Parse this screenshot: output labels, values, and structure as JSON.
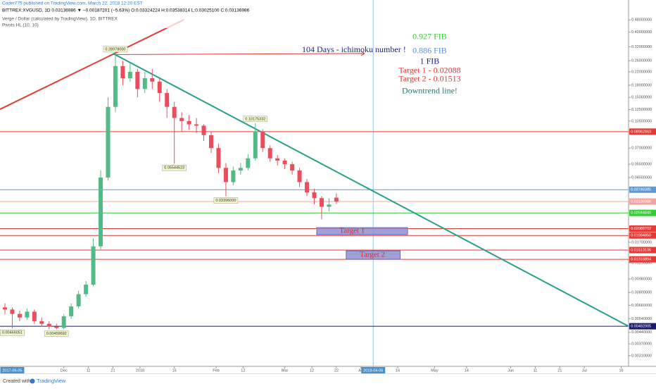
{
  "chart_data": {
    "type": "candlestick",
    "header": {
      "publisher": "Coder775 published on TradingView.com, March 22, 2018 12:20 EST",
      "symbol": "BITTREX:XVGUSD, 1D 0.03136986 ▼ −0.00187201 (−5.63%) O:0.03324224 H:0.03538314 L:0.03025100 C:0.03136986",
      "title": "Verge / Dollar (calculated by TradingView), 1D, BITTREX",
      "indicator": "Pivots HL (10, 10)"
    },
    "footer": {
      "created": "Created with",
      "brand": "TradingView"
    },
    "log_scale": true,
    "up_color": "#53b987",
    "down_color": "#eb4d5c",
    "xlim": [
      -1,
      255
    ],
    "ylim": [
      0.00264,
      0.647
    ],
    "x": [
      1,
      4,
      7,
      10,
      13,
      16,
      19,
      22,
      25,
      28,
      31,
      34,
      37,
      40,
      43,
      46,
      49,
      52,
      55,
      58,
      61,
      64,
      67,
      70,
      73,
      76,
      79,
      82,
      85,
      88,
      91,
      94,
      97,
      100,
      103,
      106,
      109,
      112,
      115,
      118,
      121,
      124,
      127,
      130,
      133,
      136
    ],
    "open": [
      0.0064,
      0.0062,
      0.0058,
      0.0055,
      0.006,
      0.0052,
      0.005,
      0.0048,
      0.0047,
      0.0056,
      0.0065,
      0.0078,
      0.009,
      0.016,
      0.045,
      0.13,
      0.24,
      0.2,
      0.22,
      0.17,
      0.2,
      0.19,
      0.16,
      0.13,
      0.11,
      0.105,
      0.1,
      0.098,
      0.085,
      0.07,
      0.052,
      0.042,
      0.05,
      0.052,
      0.06,
      0.09,
      0.07,
      0.06,
      0.058,
      0.055,
      0.05,
      0.042,
      0.036,
      0.033,
      0.029,
      0.03324224
    ],
    "high": [
      0.0068,
      0.0064,
      0.0061,
      0.0063,
      0.0062,
      0.0055,
      0.0052,
      0.005,
      0.0058,
      0.0068,
      0.0082,
      0.0095,
      0.018,
      0.05,
      0.15,
      0.28978,
      0.26,
      0.25,
      0.23,
      0.22,
      0.23,
      0.2,
      0.17,
      0.14,
      0.12,
      0.115,
      0.11,
      0.1,
      0.09,
      0.075,
      0.056,
      0.053,
      0.056,
      0.064,
      0.10175332,
      0.093,
      0.073,
      0.063,
      0.06,
      0.057,
      0.052,
      0.044,
      0.038,
      0.034,
      0.033,
      0.03538314
    ],
    "low": [
      0.0058,
      0.00466051,
      0.0052,
      0.0053,
      0.005,
      0.0048,
      0.0046,
      0.00459692,
      0.0046,
      0.0054,
      0.0063,
      0.0075,
      0.0088,
      0.015,
      0.043,
      0.12,
      0.18,
      0.19,
      0.15,
      0.16,
      0.17,
      0.14,
      0.11,
      0.05544523,
      0.09,
      0.092,
      0.088,
      0.078,
      0.065,
      0.048,
      0.03396,
      0.04,
      0.047,
      0.05,
      0.058,
      0.066,
      0.057,
      0.054,
      0.051,
      0.047,
      0.039,
      0.034,
      0.03,
      0.024,
      0.027,
      0.030251
    ],
    "close": [
      0.0062,
      0.0058,
      0.0055,
      0.006,
      0.0052,
      0.005,
      0.0048,
      0.0047,
      0.0056,
      0.0065,
      0.0078,
      0.009,
      0.016,
      0.045,
      0.13,
      0.24,
      0.2,
      0.22,
      0.17,
      0.2,
      0.19,
      0.16,
      0.13,
      0.11,
      0.105,
      0.1,
      0.098,
      0.085,
      0.07,
      0.052,
      0.042,
      0.05,
      0.052,
      0.06,
      0.09,
      0.07,
      0.06,
      0.058,
      0.055,
      0.05,
      0.042,
      0.036,
      0.033,
      0.029,
      0.03,
      0.03136986
    ],
    "pivots": [
      {
        "x": 46,
        "value": 0.28978,
        "label": "0.28978000",
        "side": "high"
      },
      {
        "x": 103,
        "value": 0.10175332,
        "label": "0.10175332",
        "side": "high"
      },
      {
        "x": 70,
        "value": 0.05544523,
        "label": "0.05544523",
        "side": "low"
      },
      {
        "x": 91,
        "value": 0.03396,
        "label": "0.03396000",
        "side": "low"
      },
      {
        "x": 4,
        "value": 0.00466051,
        "label": "0.00466051",
        "side": "low"
      },
      {
        "x": 22,
        "value": 0.00459692,
        "label": "0.00459692",
        "side": "low"
      }
    ],
    "yticks": [
      {
        "value": 0.48,
        "label": "0.48000000"
      },
      {
        "value": 0.4,
        "label": "0.40000000"
      },
      {
        "value": 0.32,
        "label": "0.32000000"
      },
      {
        "value": 0.26,
        "label": "0.26000000"
      },
      {
        "value": 0.22,
        "label": "0.22000000"
      },
      {
        "value": 0.18,
        "label": "0.18000000"
      },
      {
        "value": 0.15,
        "label": "0.15000000"
      },
      {
        "value": 0.125,
        "label": "0.12500000"
      },
      {
        "value": 0.105,
        "label": "0.10500000"
      },
      {
        "value": 0.07,
        "label": "0.07000000"
      },
      {
        "value": 0.055,
        "label": "0.05500000"
      },
      {
        "value": 0.045,
        "label": "0.04500000"
      },
      {
        "value": 0.017,
        "label": "0.01700000"
      },
      {
        "value": 0.0125,
        "label": "0.01250000"
      },
      {
        "value": 0.0098,
        "label": "0.00980000"
      },
      {
        "value": 0.008,
        "label": "0.00800000"
      },
      {
        "value": 0.0066,
        "label": "0.00660000"
      },
      {
        "value": 0.0054,
        "label": "0.00540000"
      },
      {
        "value": 0.0044,
        "label": "0.00440000"
      },
      {
        "value": 0.0037,
        "label": "0.00370000"
      },
      {
        "value": 0.0031,
        "label": "0.00310000"
      }
    ],
    "levels": [
      {
        "value": 0.08962863,
        "label": "0.08962863",
        "color": "#e53935"
      },
      {
        "value": 0.03746385,
        "label": "0.03746385",
        "color": "#5b9bd5"
      },
      {
        "value": 0.03136986,
        "label": "0.03136986",
        "color": "#f4a3a3"
      },
      {
        "value": 0.0264484,
        "label": "0.02644840",
        "color": "#33cc33"
      },
      {
        "value": 0.02088702,
        "label": "0.02088702",
        "color": "#e53935"
      },
      {
        "value": 0.0188485,
        "label": "0.01884850",
        "color": "#e53935"
      },
      {
        "value": 0.01513106,
        "label": "0.01513106",
        "color": "#e53935"
      },
      {
        "value": 0.01316894,
        "label": "0.01316894",
        "color": "#e53935"
      },
      {
        "value": 0.00482005,
        "label": "0.00482005",
        "color": "#1a1a6e"
      }
    ],
    "xticks": [
      {
        "value": 4,
        "label": "2017-06-05",
        "highlight": true
      },
      {
        "value": 25,
        "label": "Dec"
      },
      {
        "value": 35,
        "label": "11"
      },
      {
        "value": 45,
        "label": "21"
      },
      {
        "value": 56,
        "label": "2018"
      },
      {
        "value": 70,
        "label": "15"
      },
      {
        "value": 87,
        "label": "Feb"
      },
      {
        "value": 98,
        "label": "12"
      },
      {
        "value": 115,
        "label": "Mar"
      },
      {
        "value": 126,
        "label": "12"
      },
      {
        "value": 136,
        "label": "22"
      },
      {
        "value": 146,
        "label": "Ap"
      },
      {
        "value": 151,
        "label": "2018-04-06",
        "highlight": true
      },
      {
        "value": 161,
        "label": "16"
      },
      {
        "value": 176,
        "label": "May"
      },
      {
        "value": 189,
        "label": "14"
      },
      {
        "value": 207,
        "label": "Jun"
      },
      {
        "value": 217,
        "label": "11"
      },
      {
        "value": 227,
        "label": "21"
      },
      {
        "value": 237,
        "label": "Jul"
      },
      {
        "value": 252,
        "label": "16"
      }
    ],
    "trendlines": [
      {
        "color": "#e53935",
        "points": [
          [
            -1,
            0.1254
          ],
          [
            74,
            0.482
          ]
        ]
      },
      {
        "color": "#26a08a",
        "points": [
          [
            45,
            0.28978
          ],
          [
            255,
            0.00482
          ]
        ]
      }
    ],
    "arrow": {
      "color": "#e53935",
      "points": [
        [
          45,
          0.285
        ],
        [
          147.5,
          0.29
        ]
      ]
    },
    "vline": {
      "x": 151,
      "color": "#8fc3e8"
    },
    "boxes": [
      {
        "label": "Target 1",
        "x": [
          128,
          165
        ],
        "price": [
          0.0191,
          0.0212
        ]
      },
      {
        "label": "Target 2",
        "x": [
          140,
          162
        ],
        "price": [
          0.01317,
          0.01496
        ]
      }
    ],
    "annotations": [
      {
        "text": "104 Days - ichimoku number !",
        "color": "#1a237e",
        "x": 122,
        "price": 0.305
      },
      {
        "text": "0.927 FIB",
        "color": "#33cc33",
        "x": 174,
        "price": 0.37
      },
      {
        "text": "0.886 FIB",
        "color": "#5b8fd0",
        "x": 174,
        "price": 0.3
      },
      {
        "text": "1 FIB",
        "color": "#1a237e",
        "x": 174,
        "price": 0.256
      },
      {
        "text": "Target 1 - 0.02088",
        "color": "#e53935",
        "x": 174,
        "price": 0.223
      },
      {
        "text": "Target 2 - 0.01513",
        "color": "#e53935",
        "x": 174,
        "price": 0.196
      },
      {
        "text": "Downtrend line!",
        "color": "#1d7f74",
        "x": 174,
        "price": 0.164
      }
    ]
  }
}
